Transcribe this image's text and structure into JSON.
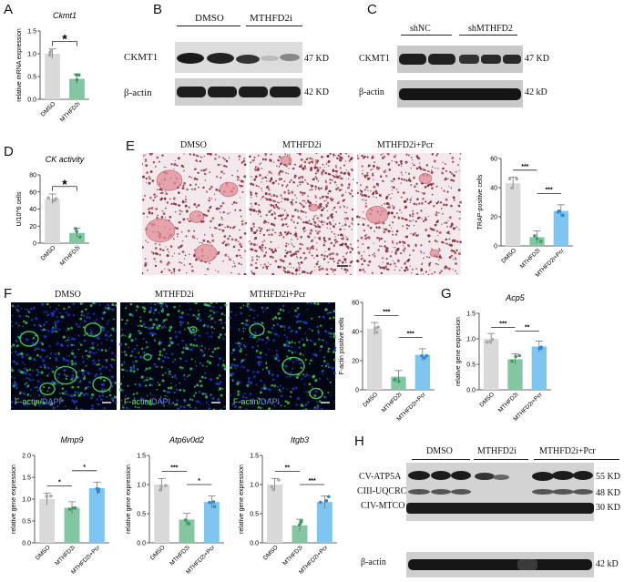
{
  "panels": {
    "A": {
      "letter": "A",
      "title": "Ckmt1",
      "ylabel": "relative mRNA expression",
      "ticks": [
        "0.0",
        "0.5",
        "1.0",
        "1.5"
      ],
      "categories": [
        "DMSO",
        "MTHFD2i"
      ],
      "sig": "*"
    },
    "B": {
      "letter": "B",
      "groups": [
        "DMSO",
        "MTHFD2i"
      ],
      "rows": [
        {
          "name": "CKMT1",
          "kd": "47 KD"
        },
        {
          "name": "β-actin",
          "kd": "42 KD"
        }
      ]
    },
    "C": {
      "letter": "C",
      "groups": [
        "shNC",
        "shMTHFD2"
      ],
      "rows": [
        {
          "name": "CKMT1",
          "kd": "47 KD"
        },
        {
          "name": "β-actin",
          "kd": "42 kD"
        }
      ]
    },
    "D": {
      "letter": "D",
      "title": "CK activity",
      "ylabel": "U/10^6 cells",
      "ticks": [
        "0",
        "20",
        "40",
        "60",
        "80"
      ],
      "categories": [
        "DMSO",
        "MTHFD2i"
      ],
      "sig": "*"
    },
    "E": {
      "letter": "E",
      "images": [
        "DMSO",
        "MTHFD2i",
        "MTHFD2i+Pcr"
      ],
      "ylabel": "TRAP-positive cells",
      "ticks": [
        "0",
        "20",
        "40",
        "60"
      ],
      "categories": [
        "DMSO",
        "MTHFD2i",
        "MTHFD2i+Pcr"
      ],
      "sig": [
        "***",
        "***"
      ]
    },
    "F": {
      "letter": "F",
      "images": [
        "DMSO",
        "MTHFD2i",
        "MTHFD2i+Pcr"
      ],
      "stain_a": "F-actin",
      "stain_b": "DAPI",
      "ylabel": "F-actin positive cells",
      "ticks": [
        "0",
        "20",
        "40",
        "60"
      ],
      "categories": [
        "DMSO",
        "MTHFD2i",
        "MTHFD2i+Pcr"
      ],
      "sig": [
        "***",
        "***"
      ]
    },
    "G": {
      "letter": "G",
      "title": "Acp5",
      "ylabel": "relative gene expression",
      "ticks": [
        "0.0",
        "0.5",
        "1.0",
        "1.5"
      ],
      "categories": [
        "DMSO",
        "MTHFD2i",
        "MTHFD2i+Pcr"
      ],
      "sig": [
        "***",
        "**"
      ]
    },
    "I1": {
      "title": "Mmp9",
      "ylabel": "relative gene expression",
      "ticks": [
        "0.0",
        "0.5",
        "1.0",
        "1.5",
        "2.0"
      ],
      "categories": [
        "DMSO",
        "MTHFD2i",
        "MTHFD2i+Pcr"
      ],
      "sig": [
        "*",
        "*"
      ]
    },
    "I2": {
      "title": "Atp6v0d2",
      "ylabel": "relative gene expression",
      "ticks": [
        "0.0",
        "0.5",
        "1.0",
        "1.5"
      ],
      "categories": [
        "DMSO",
        "MTHFD2i",
        "MTHFD2i+Pcr"
      ],
      "sig": [
        "***",
        "*"
      ]
    },
    "I3": {
      "title": "Itgb3",
      "ylabel": "relative gene expression",
      "ticks": [
        "0.0",
        "0.5",
        "1.0",
        "1.5"
      ],
      "categories": [
        "DMSO",
        "MTHFD2i",
        "MTHFD2i+Pcr"
      ],
      "sig": [
        "**",
        "***"
      ]
    },
    "H": {
      "letter": "H",
      "groups": [
        "DMSO",
        "MTHFD2i",
        "MTHFD2i+Pcr"
      ],
      "rows": [
        {
          "name": "CV-ATP5A",
          "kd": "55 KD"
        },
        {
          "name": "CIII-UQCRC2",
          "kd": "48 KD"
        },
        {
          "name": "CIV-MTCO1",
          "kd": "30 KD"
        },
        {
          "name": "β-actin",
          "kd": "42 kD"
        }
      ]
    }
  },
  "chart_data": [
    {
      "type": "bar",
      "title": "Ckmt1",
      "ylabel": "relative mRNA expression",
      "categories": [
        "DMSO",
        "MTHFD2i"
      ],
      "values": [
        1.0,
        0.45
      ],
      "ylim": [
        0,
        1.5
      ],
      "colors": [
        "#d9d9d9",
        "#83c6a2"
      ]
    },
    {
      "type": "bar",
      "title": "CK activity",
      "ylabel": "U/10^6 cells",
      "categories": [
        "DMSO",
        "MTHFD2i"
      ],
      "values": [
        52,
        12
      ],
      "ylim": [
        0,
        80
      ],
      "colors": [
        "#d9d9d9",
        "#83c6a2"
      ]
    },
    {
      "type": "bar",
      "ylabel": "TRAP-positive cells",
      "categories": [
        "DMSO",
        "MTHFD2i",
        "MTHFD2i+Pcr"
      ],
      "values": [
        43,
        6,
        24
      ],
      "ylim": [
        0,
        60
      ],
      "colors": [
        "#d9d9d9",
        "#83c6a2",
        "#7ec5f2"
      ]
    },
    {
      "type": "bar",
      "ylabel": "F-actin positive cells",
      "categories": [
        "DMSO",
        "MTHFD2i",
        "MTHFD2i+Pcr"
      ],
      "values": [
        42,
        9,
        24
      ],
      "ylim": [
        0,
        60
      ],
      "colors": [
        "#d9d9d9",
        "#83c6a2",
        "#7ec5f2"
      ]
    },
    {
      "type": "bar",
      "title": "Acp5",
      "ylabel": "relative gene expression",
      "categories": [
        "DMSO",
        "MTHFD2i",
        "MTHFD2i+Pcr"
      ],
      "values": [
        1.0,
        0.6,
        0.85
      ],
      "ylim": [
        0,
        1.5
      ],
      "colors": [
        "#d9d9d9",
        "#83c6a2",
        "#7ec5f2"
      ]
    },
    {
      "type": "bar",
      "title": "Mmp9",
      "ylabel": "relative gene expression",
      "categories": [
        "DMSO",
        "MTHFD2i",
        "MTHFD2i+Pcr"
      ],
      "values": [
        1.0,
        0.8,
        1.25
      ],
      "ylim": [
        0,
        2.0
      ],
      "colors": [
        "#d9d9d9",
        "#83c6a2",
        "#7ec5f2"
      ]
    },
    {
      "type": "bar",
      "title": "Atp6v0d2",
      "ylabel": "relative gene expression",
      "categories": [
        "DMSO",
        "MTHFD2i",
        "MTHFD2i+Pcr"
      ],
      "values": [
        1.0,
        0.4,
        0.7
      ],
      "ylim": [
        0,
        1.5
      ],
      "colors": [
        "#d9d9d9",
        "#83c6a2",
        "#7ec5f2"
      ]
    },
    {
      "type": "bar",
      "title": "Itgb3",
      "ylabel": "relative gene expression",
      "categories": [
        "DMSO",
        "MTHFD2i",
        "MTHFD2i+Pcr"
      ],
      "values": [
        1.0,
        0.3,
        0.7
      ],
      "ylim": [
        0,
        1.5
      ],
      "colors": [
        "#d9d9d9",
        "#83c6a2",
        "#7ec5f2"
      ]
    }
  ]
}
